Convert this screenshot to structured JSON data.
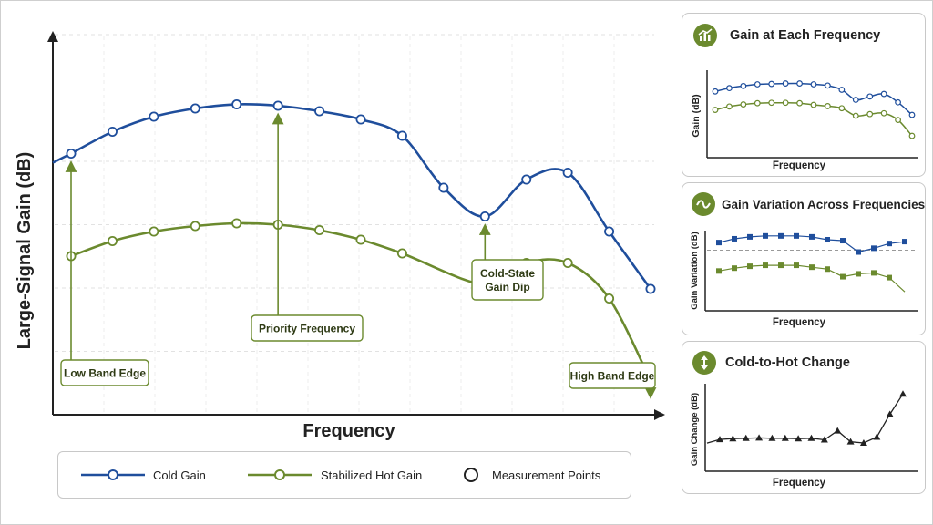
{
  "chart_data": [
    {
      "type": "line",
      "xlabel": "Frequency",
      "ylabel": "Large-Signal Gain (dB)",
      "series": [
        {
          "name": "Cold Gain",
          "color": "#1f4e9c",
          "values": [
            9.55,
            10.35,
            10.9,
            11.2,
            11.35,
            11.3,
            11.1,
            10.8,
            10.2,
            8.3,
            7.25,
            8.6,
            8.85,
            6.7,
            4.6
          ]
        },
        {
          "name": "Stabilized Hot Gain",
          "color": "#6b8a2e",
          "values": [
            5.8,
            6.35,
            6.7,
            6.9,
            7.0,
            6.95,
            6.75,
            6.4,
            5.9,
            null,
            4.75,
            5.55,
            5.55,
            4.25,
            1.25
          ]
        }
      ],
      "annotations": [
        {
          "label": "Low Band Edge",
          "index": 0
        },
        {
          "label": "Priority Frequency",
          "index": 5
        },
        {
          "label": "Cold-State Gain Dip",
          "index": 10
        },
        {
          "label": "High Band Edge",
          "index": 14
        }
      ],
      "legend": [
        "Cold Gain",
        "Stabilized Hot Gain",
        "Measurement Points"
      ],
      "grid": true
    },
    {
      "type": "line",
      "title": "Gain at Each Frequency",
      "xlabel": "Frequency",
      "ylabel": "Gain (dB)",
      "series": [
        {
          "name": "Cold Gain",
          "values": [
            7.9,
            8.3,
            8.55,
            8.75,
            8.8,
            8.85,
            8.85,
            8.75,
            8.6,
            8.1,
            6.9,
            7.3,
            7.6,
            6.6,
            5.1
          ]
        },
        {
          "name": "Hot Gain",
          "values": [
            5.7,
            6.1,
            6.35,
            6.5,
            6.55,
            6.55,
            6.5,
            6.3,
            6.15,
            5.9,
            5.0,
            5.2,
            5.3,
            4.5,
            2.6
          ]
        }
      ]
    },
    {
      "type": "scatter",
      "title": "Gain Variation Across Frequencies",
      "xlabel": "Frequency",
      "ylabel": "Gain Variation (dB)",
      "series": [
        {
          "name": "Cold Gain",
          "values": [
            7.2,
            7.6,
            7.8,
            7.9,
            7.9,
            7.9,
            7.8,
            7.5,
            7.4,
            6.2,
            6.6,
            7.1,
            7.3
          ]
        },
        {
          "name": "Hot Gain",
          "values": [
            4.2,
            4.5,
            4.7,
            4.8,
            4.8,
            4.8,
            4.6,
            4.4,
            3.6,
            3.9,
            4.0,
            3.5,
            2.0
          ]
        }
      ],
      "reference_line": 6.4
    },
    {
      "type": "line",
      "title": "Cold-to-Hot Change",
      "xlabel": "Frequency",
      "ylabel": "Gain Change (dB)",
      "series": [
        {
          "name": "Cold-to-Hot Change",
          "values": [
            2.2,
            2.3,
            2.35,
            2.4,
            2.35,
            2.35,
            2.3,
            2.35,
            2.15,
            3.3,
            1.9,
            1.75,
            2.5,
            5.4,
            8.0
          ]
        }
      ]
    }
  ]
}
